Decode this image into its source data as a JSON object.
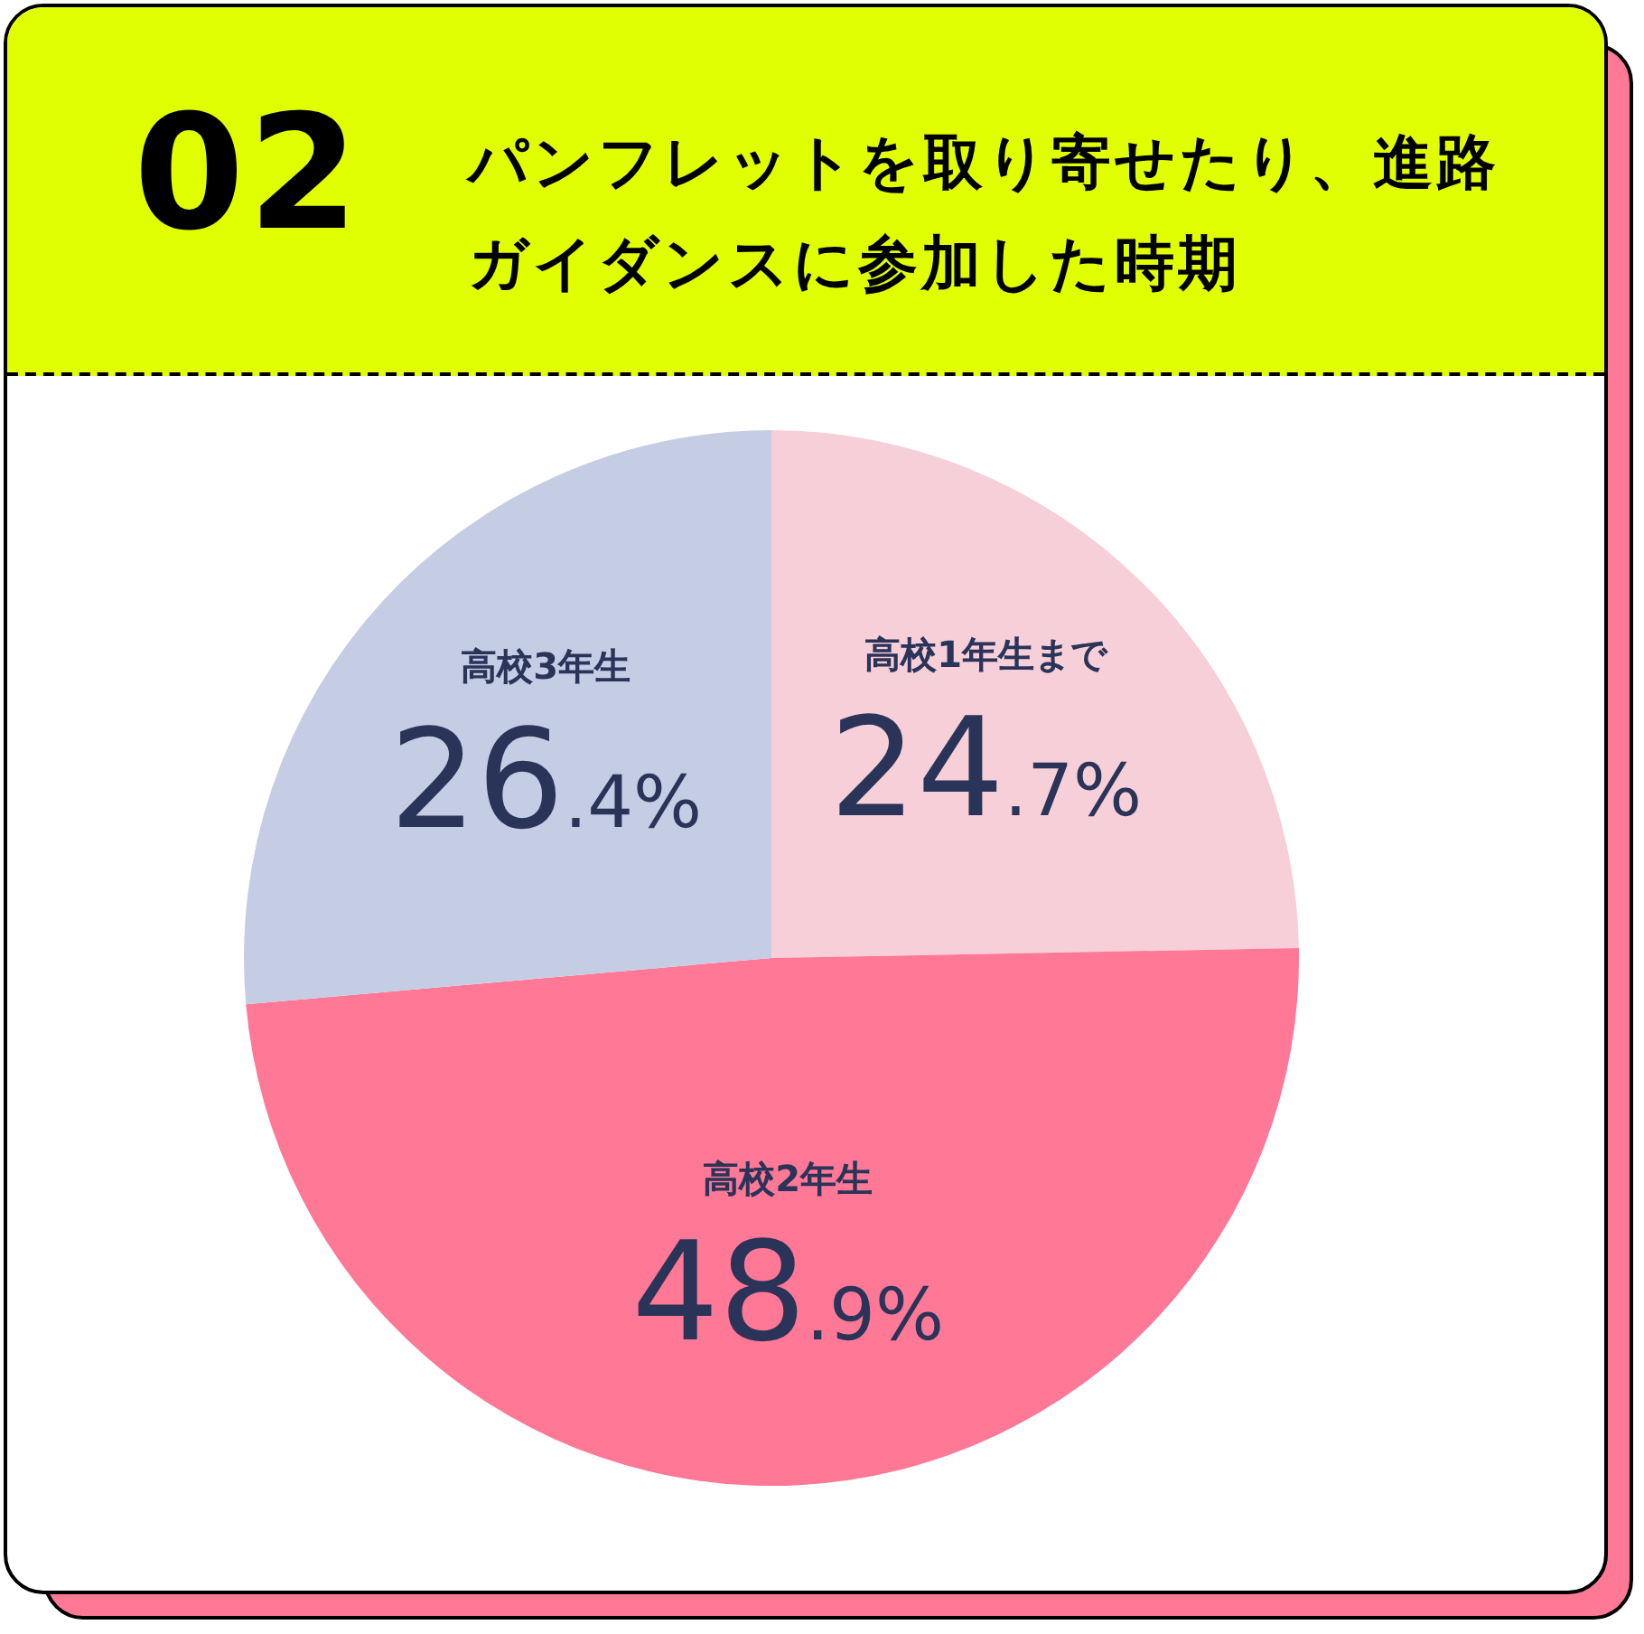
{
  "chart_data": {
    "type": "pie",
    "title": "パンフレットを取り寄せたり、進路ガイダンスに参加した時期",
    "annotations": [
      "02"
    ],
    "categories": [
      "高校1年生まで",
      "高校2年生",
      "高校3年生"
    ],
    "values": [
      24.7,
      48.9,
      26.4
    ],
    "colors": [
      "#f7cfd9",
      "#ff7896",
      "#c5cde5"
    ],
    "value_labels": [
      "24.7%",
      "48.9%",
      "26.4%"
    ],
    "legend": false
  }
}
